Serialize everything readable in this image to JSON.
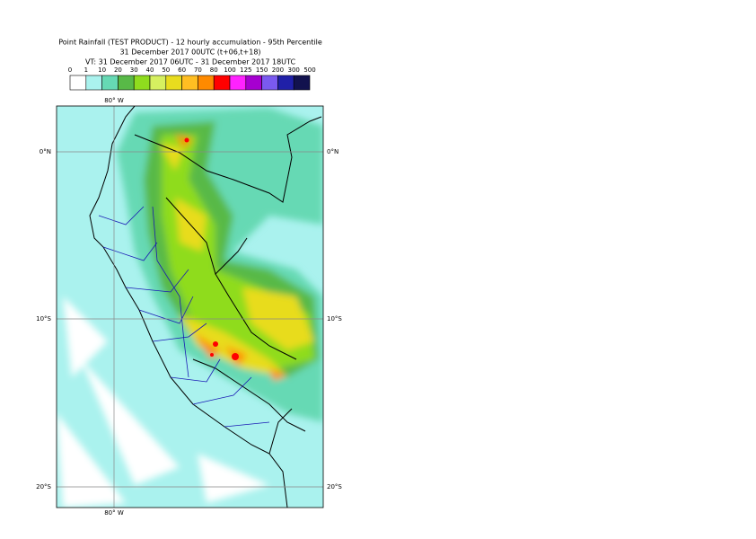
{
  "header": {
    "title": "Point Rainfall (TEST PRODUCT) - 12 hourly accumulation - 95th Percentile",
    "base_time": "31 December 2017 00UTC (t+06,t+18)",
    "valid_time": "VT: 31 December 2017 06UTC - 31 December 2017 18UTC"
  },
  "legend": {
    "labels": [
      0,
      1,
      10,
      20,
      30,
      40,
      50,
      60,
      70,
      80,
      100,
      125,
      150,
      200,
      300,
      500
    ],
    "colors": [
      "#ffffff",
      "#aaf2ee",
      "#66d9b4",
      "#58b947",
      "#8fdc1e",
      "#d6f060",
      "#e8dc1e",
      "#ffbe22",
      "#ff8a00",
      "#ff0000",
      "#ff22ff",
      "#a600d0",
      "#7a5af0",
      "#2020a8",
      "#12124e"
    ]
  },
  "map": {
    "lon_top": "80° W",
    "lon_bottom": "80° W",
    "lat_left": [
      "0°N",
      "10°S",
      "20°S"
    ],
    "lat_right": [
      "0°N",
      "10°S",
      "20°S"
    ]
  }
}
